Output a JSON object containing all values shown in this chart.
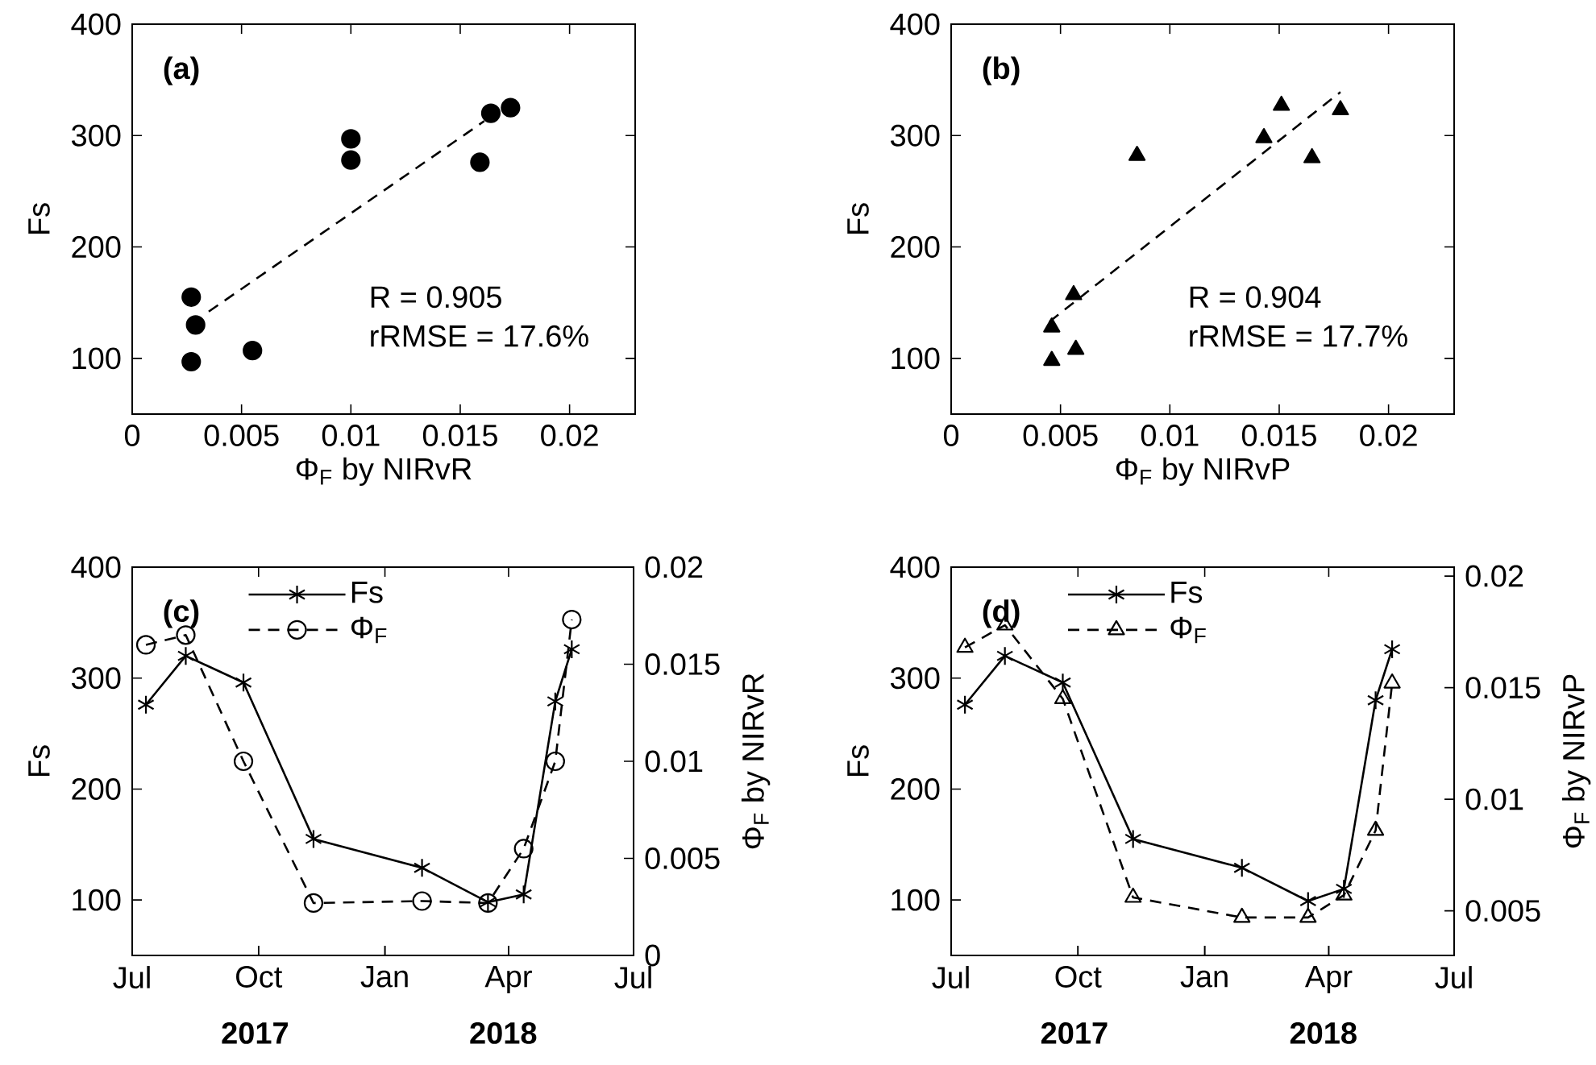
{
  "chart_data": [
    {
      "type": "scatter",
      "xlabel": "Φ$_{F}$ by NIRvR",
      "ylabel": "Fs",
      "xlim": [
        0,
        0.023
      ],
      "xticks": [
        0,
        0.005,
        0.01,
        0.015,
        0.02
      ],
      "ylim": [
        50,
        400
      ],
      "yticks": [
        100,
        200,
        300,
        400
      ],
      "annotations": [
        "(a)",
        "R = 0.905",
        "rRMSE = 17.6%"
      ],
      "series": [
        {
          "color": "#000000",
          "marker": "circle",
          "x": [
            0.0027,
            0.0029,
            0.0027,
            0.0055,
            0.01,
            0.01,
            0.0159,
            0.0164,
            0.0173
          ],
          "values": [
            155,
            130,
            97,
            107,
            297,
            278,
            276,
            320,
            325
          ]
        },
        {
          "type": "line",
          "color": "#000000",
          "line_style": "dashed",
          "marker": "none",
          "x": [
            0.0035,
            0.0161
          ],
          "values": [
            142,
            313
          ]
        }
      ]
    },
    {
      "type": "scatter",
      "xlabel": "Φ$_{F}$ by NIRvP",
      "ylabel": "Fs",
      "xlim": [
        0,
        0.023
      ],
      "xticks": [
        0,
        0.005,
        0.01,
        0.015,
        0.02
      ],
      "ylim": [
        50,
        400
      ],
      "yticks": [
        100,
        200,
        300,
        400
      ],
      "annotations": [
        "(b)",
        "R = 0.904",
        "rRMSE = 17.7%"
      ],
      "series": [
        {
          "color": "#000000",
          "marker": "triangle",
          "x": [
            0.0046,
            0.0046,
            0.0056,
            0.0057,
            0.0085,
            0.0143,
            0.0151,
            0.0165,
            0.0178
          ],
          "values": [
            98,
            128,
            157,
            108,
            282,
            298,
            327,
            280,
            323
          ]
        },
        {
          "type": "line",
          "color": "#000000",
          "line_style": "dashed",
          "marker": "none",
          "x": [
            0.0045,
            0.0178
          ],
          "values": [
            133,
            339
          ]
        }
      ]
    },
    {
      "type": "line",
      "ylabel": "Fs",
      "y2label": "Φ$_{F}$ by NIRvR",
      "x": [
        "2017-07-11",
        "2017-08-09",
        "2017-09-20",
        "2017-11-10",
        "2018-01-28",
        "2018-03-17",
        "2018-04-12",
        "2018-05-05",
        "2018-05-17"
      ],
      "xlim": [
        "2017-07-01",
        "2018-07-01"
      ],
      "xticks": [
        {
          "value": "2017-07-01",
          "label": "Jul"
        },
        {
          "value": "2017-10-01",
          "label": "Oct"
        },
        {
          "value": "2018-01-01",
          "label": "Jan"
        },
        {
          "value": "2018-04-01",
          "label": "Apr"
        },
        {
          "value": "2018-07-01",
          "label": "Jul"
        }
      ],
      "ylim": [
        50,
        400
      ],
      "yticks": [
        100,
        200,
        300,
        400
      ],
      "y2lim": [
        0,
        0.02
      ],
      "y2ticks": [
        0,
        0.005,
        0.01,
        0.015,
        0.02
      ],
      "legend": "top",
      "annotations": [
        "(c)",
        "2017",
        "2018"
      ],
      "series": [
        {
          "name": "Fs",
          "color": "#000000",
          "marker": "cross",
          "line_style": "solid",
          "values": [
            276,
            320,
            296,
            155,
            129,
            98,
            105,
            279,
            326
          ]
        },
        {
          "name": "Φ$_{F}$",
          "color": "#000000",
          "marker": "circle",
          "line_style": "dashed",
          "axis": "y2",
          "values": [
            0.016,
            0.0165,
            0.01,
            0.0027,
            0.0028,
            0.0027,
            0.0055,
            0.01,
            0.0173
          ]
        }
      ]
    },
    {
      "type": "line",
      "ylabel": "Fs",
      "y2label": "Φ$_{F}$ by NIRvP",
      "x": [
        "2017-07-11",
        "2017-08-09",
        "2017-09-20",
        "2017-11-10",
        "2018-01-28",
        "2018-03-17",
        "2018-04-12",
        "2018-05-05",
        "2018-05-17"
      ],
      "xlim": [
        "2017-07-01",
        "2018-07-01"
      ],
      "xticks": [
        {
          "value": "2017-07-01",
          "label": "Jul"
        },
        {
          "value": "2017-10-01",
          "label": "Oct"
        },
        {
          "value": "2018-01-01",
          "label": "Jan"
        },
        {
          "value": "2018-04-01",
          "label": "Apr"
        },
        {
          "value": "2018-07-01",
          "label": "Jul"
        }
      ],
      "ylim": [
        50,
        400
      ],
      "yticks": [
        100,
        200,
        300,
        400
      ],
      "y2lim": [
        0.003,
        0.0204
      ],
      "y2ticks": [
        0.005,
        0.01,
        0.015,
        0.02
      ],
      "legend": "top",
      "annotations": [
        "(d)",
        "2017",
        "2018"
      ],
      "series": [
        {
          "name": "Fs",
          "color": "#000000",
          "marker": "cross",
          "line_style": "solid",
          "values": [
            276,
            320,
            296,
            155,
            129,
            99,
            110,
            280,
            326
          ]
        },
        {
          "name": "Φ$_{F}$",
          "color": "#000000",
          "marker": "triangle",
          "line_style": "dashed",
          "axis": "y2",
          "values": [
            0.0168,
            0.0178,
            0.0145,
            0.0056,
            0.0047,
            0.0047,
            0.0057,
            0.0086,
            0.0152
          ]
        }
      ]
    }
  ]
}
